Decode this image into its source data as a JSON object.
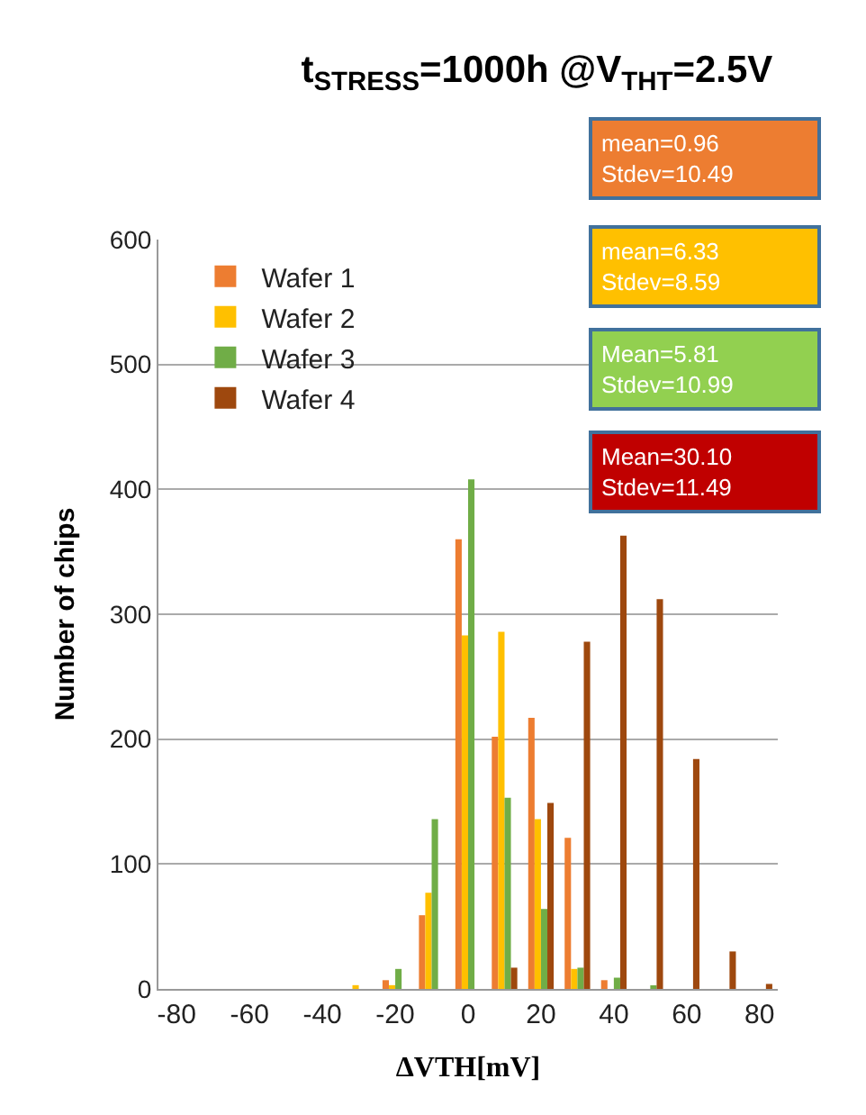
{
  "chart_data": {
    "type": "bar",
    "title": "t$_{STRESS}$=1000h @V$_{THT}$=2.5V",
    "xlabel": "ΔVTH[mV]",
    "ylabel": "Number of chips",
    "categories": [
      "-80",
      null,
      "-60",
      null,
      "-40",
      null,
      "-20",
      null,
      "0",
      null,
      "20",
      null,
      "40",
      null,
      "60",
      null,
      "80"
    ],
    "series": [
      {
        "name": "Wafer 1",
        "color": "#ed7d31",
        "values": [
          0,
          0,
          0,
          0,
          0,
          0,
          7,
          59,
          360,
          202,
          217,
          121,
          7,
          0,
          0,
          0,
          0
        ]
      },
      {
        "name": "Wafer 2",
        "color": "#ffc000",
        "values": [
          0,
          0,
          0,
          0,
          0,
          3,
          3,
          77,
          283,
          286,
          136,
          16,
          0,
          0,
          0,
          0,
          0
        ]
      },
      {
        "name": "Wafer 3",
        "color": "#70ad47",
        "values": [
          0,
          0,
          0,
          0,
          0,
          0,
          16,
          136,
          408,
          153,
          64,
          17,
          9,
          2,
          0,
          0,
          0
        ]
      },
      {
        "name": "Wafer 4",
        "color": "#9e480e",
        "values": [
          0,
          0,
          0,
          0,
          0,
          0,
          0,
          0,
          0,
          17,
          149,
          278,
          363,
          312,
          184,
          30,
          4
        ]
      }
    ],
    "ylim": [
      0,
      600
    ],
    "yticks": [
      0,
      100,
      200,
      300,
      400,
      500,
      600
    ],
    "grid": "y",
    "legend": "top left",
    "annotations": [
      "mean=0.96\nStdev=10.49",
      "mean=6.33\nStdev=8.59",
      "Mean=5.81\nStdev=10.99",
      "Mean=30.10\nStdev=11.49"
    ]
  }
}
